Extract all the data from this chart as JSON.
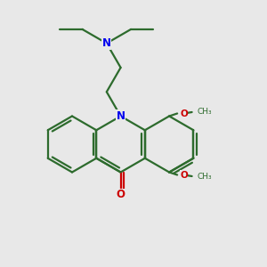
{
  "bg_color": "#e8e8e8",
  "bond_color": "#2d6b2d",
  "n_color": "#0000ee",
  "o_color": "#cc0000",
  "lw": 1.6,
  "lw_double_inner": 1.6,
  "figsize": [
    3.0,
    3.0
  ],
  "dpi": 100,
  "xlim": [
    0,
    10
  ],
  "ylim": [
    0,
    10
  ],
  "font_size": 8.5,
  "font_size_small": 7.5
}
